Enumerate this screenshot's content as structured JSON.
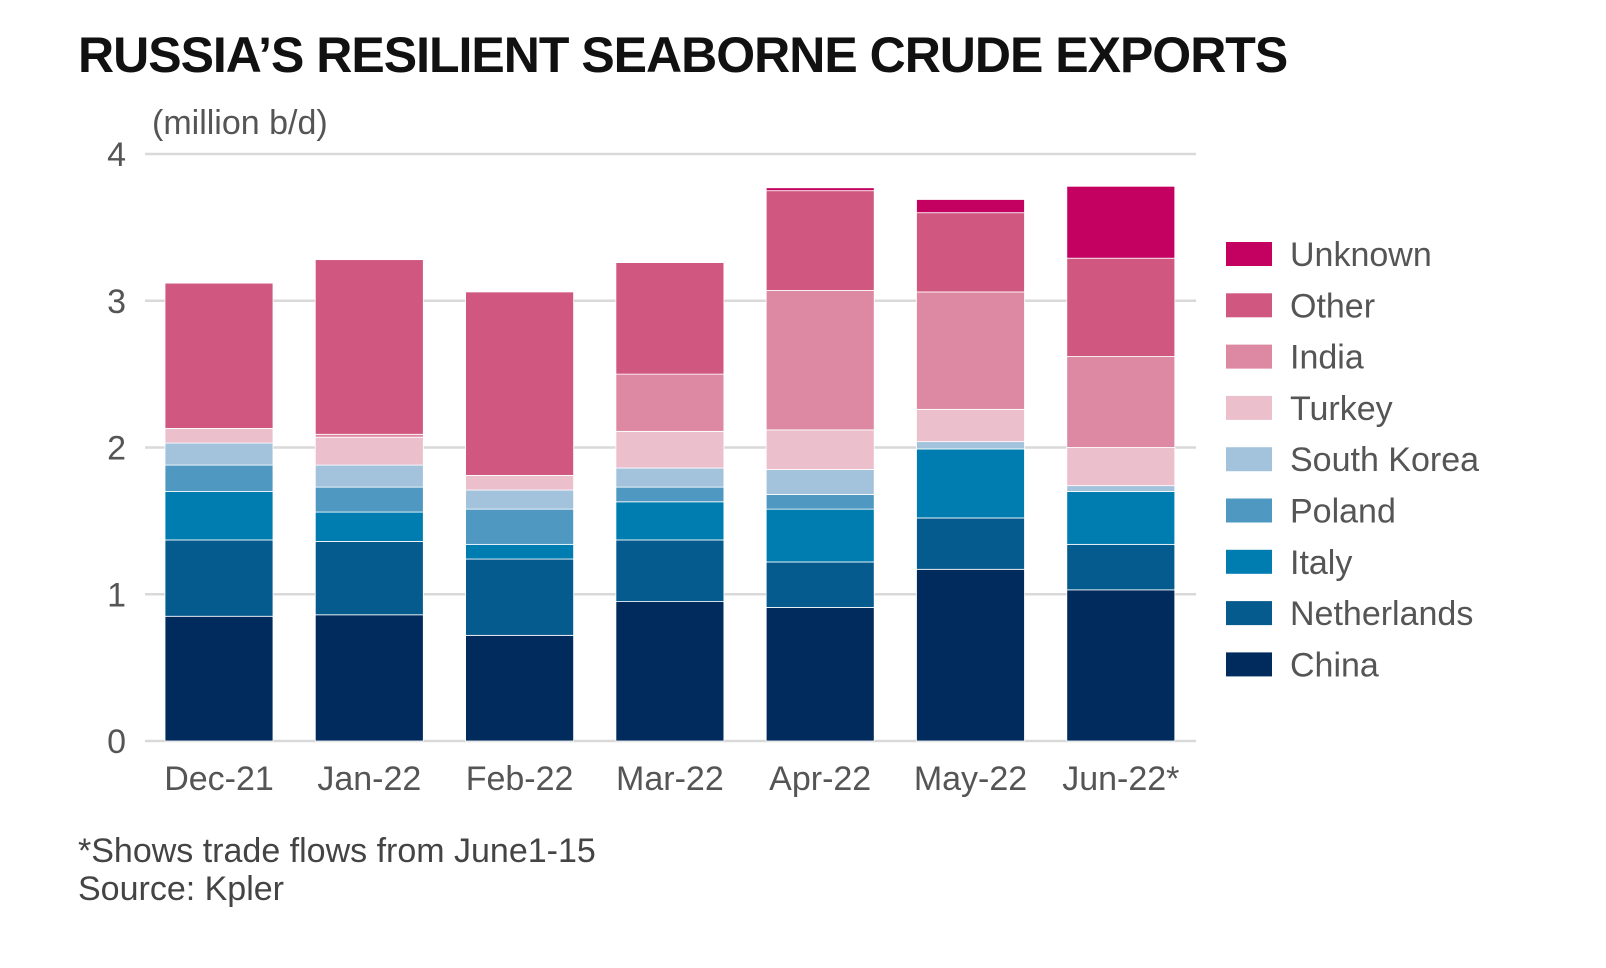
{
  "title": "RUSSIA’S RESILIENT SEABORNE CRUDE EXPORTS",
  "footnote": "*Shows trade flows from June1-15",
  "source": "Source: Kpler",
  "chart_data": {
    "type": "bar",
    "stacked": true,
    "title": "RUSSIA’S RESILIENT SEABORNE CRUDE EXPORTS",
    "ylabel": "(million b/d)",
    "xlabel": "",
    "ylim": [
      0,
      4
    ],
    "yticks": [
      0,
      1,
      2,
      3,
      4
    ],
    "grid": true,
    "legend_position": "right",
    "categories": [
      "Dec-21",
      "Jan-22",
      "Feb-22",
      "Mar-22",
      "Apr-22",
      "May-22",
      "Jun-22*"
    ],
    "series": [
      {
        "name": "China",
        "color": "#002b5c",
        "values": [
          0.85,
          0.86,
          0.72,
          0.95,
          0.91,
          1.17,
          1.03
        ]
      },
      {
        "name": "Netherlands",
        "color": "#055a8e",
        "values": [
          0.52,
          0.5,
          0.52,
          0.42,
          0.31,
          0.35,
          0.31
        ]
      },
      {
        "name": "Italy",
        "color": "#007db0",
        "values": [
          0.33,
          0.2,
          0.1,
          0.26,
          0.36,
          0.47,
          0.36
        ]
      },
      {
        "name": "Poland",
        "color": "#4f98c2",
        "values": [
          0.18,
          0.17,
          0.24,
          0.1,
          0.1,
          0.0,
          0.0
        ]
      },
      {
        "name": "South Korea",
        "color": "#a3c3dd",
        "values": [
          0.15,
          0.15,
          0.13,
          0.13,
          0.17,
          0.05,
          0.04
        ]
      },
      {
        "name": "Turkey",
        "color": "#ecbfcd",
        "values": [
          0.1,
          0.19,
          0.1,
          0.25,
          0.27,
          0.22,
          0.26
        ]
      },
      {
        "name": "India",
        "color": "#de89a3",
        "values": [
          0.0,
          0.02,
          0.0,
          0.39,
          0.95,
          0.8,
          0.62
        ]
      },
      {
        "name": "Other",
        "color": "#d0577f",
        "values": [
          0.99,
          1.19,
          1.25,
          0.76,
          0.68,
          0.54,
          0.67
        ]
      },
      {
        "name": "Unknown",
        "color": "#c40060",
        "values": [
          0.0,
          0.0,
          0.0,
          0.0,
          0.02,
          0.09,
          0.49
        ]
      }
    ]
  }
}
